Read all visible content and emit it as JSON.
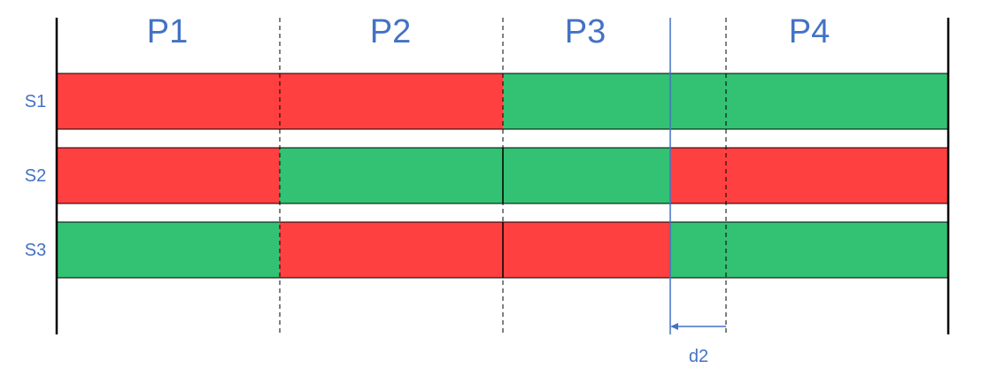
{
  "colors": {
    "red": "#ff4040",
    "green": "#33c173",
    "text": "#4472c4",
    "marker": "#4472c4",
    "axis": "#000000"
  },
  "phases": [
    "P1",
    "P2",
    "P3",
    "P4"
  ],
  "rows": [
    {
      "label": "S1",
      "states": [
        "red",
        "red",
        "green",
        "green"
      ]
    },
    {
      "label": "S2",
      "states": [
        "red",
        "green",
        "green",
        "red"
      ]
    },
    {
      "label": "S3",
      "states": [
        "green",
        "red",
        "red",
        "green"
      ]
    }
  ],
  "delay": {
    "label": "d2",
    "description": "P4 color begins at offset line before the P3/P4 boundary"
  }
}
